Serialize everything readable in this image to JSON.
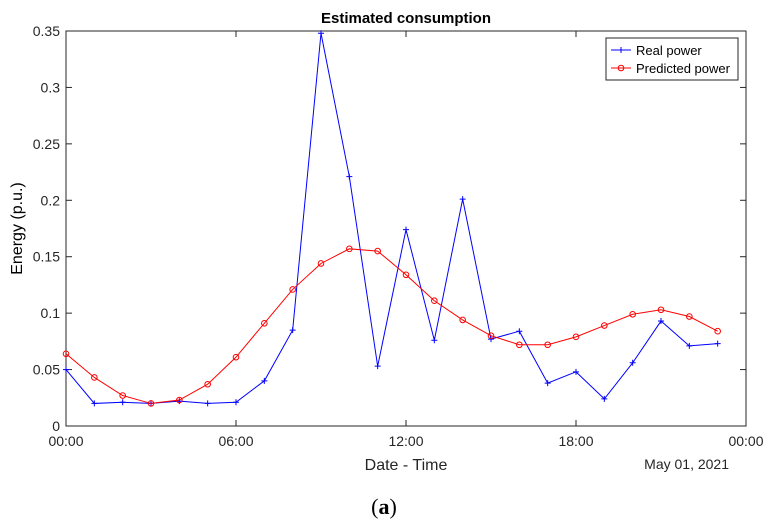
{
  "chart_data": {
    "type": "line",
    "title": "Estimated consumption",
    "xlabel": "Date - Time",
    "ylabel": "Energy (p.u.)",
    "date_label": "May 01, 2021",
    "x_ticks": [
      {
        "value": 0,
        "label": "00:00"
      },
      {
        "value": 6,
        "label": "06:00"
      },
      {
        "value": 12,
        "label": "12:00"
      },
      {
        "value": 18,
        "label": "18:00"
      },
      {
        "value": 24,
        "label": "00:00"
      }
    ],
    "y_ticks": [
      {
        "value": 0,
        "label": "0"
      },
      {
        "value": 0.05,
        "label": "0.05"
      },
      {
        "value": 0.1,
        "label": "0.1"
      },
      {
        "value": 0.15,
        "label": "0.15"
      },
      {
        "value": 0.2,
        "label": "0.2"
      },
      {
        "value": 0.25,
        "label": "0.25"
      },
      {
        "value": 0.3,
        "label": "0.3"
      },
      {
        "value": 0.35,
        "label": "0.35"
      }
    ],
    "xlim": [
      0,
      24
    ],
    "ylim": [
      0,
      0.35
    ],
    "legend_position": "top-right",
    "x": [
      0,
      1,
      2,
      3,
      4,
      5,
      6,
      7,
      8,
      9,
      10,
      11,
      12,
      13,
      14,
      15,
      16,
      17,
      18,
      19,
      20,
      21,
      22,
      23
    ],
    "series": [
      {
        "name": "Real power",
        "color": "#0000ff",
        "marker": "plus",
        "values": [
          0.05,
          0.02,
          0.021,
          0.02,
          0.022,
          0.02,
          0.021,
          0.04,
          0.085,
          0.348,
          0.221,
          0.053,
          0.174,
          0.076,
          0.201,
          0.077,
          0.084,
          0.038,
          0.048,
          0.024,
          0.056,
          0.093,
          0.071,
          0.073
        ]
      },
      {
        "name": "Predicted power",
        "color": "#ff0000",
        "marker": "circle",
        "values": [
          0.064,
          0.043,
          0.027,
          0.02,
          0.023,
          0.037,
          0.061,
          0.091,
          0.121,
          0.144,
          0.157,
          0.155,
          0.134,
          0.111,
          0.094,
          0.08,
          0.072,
          0.072,
          0.079,
          0.089,
          0.099,
          0.103,
          0.097,
          0.084
        ]
      }
    ]
  },
  "caption": {
    "open": "(",
    "letter": "a",
    "close": ")"
  }
}
